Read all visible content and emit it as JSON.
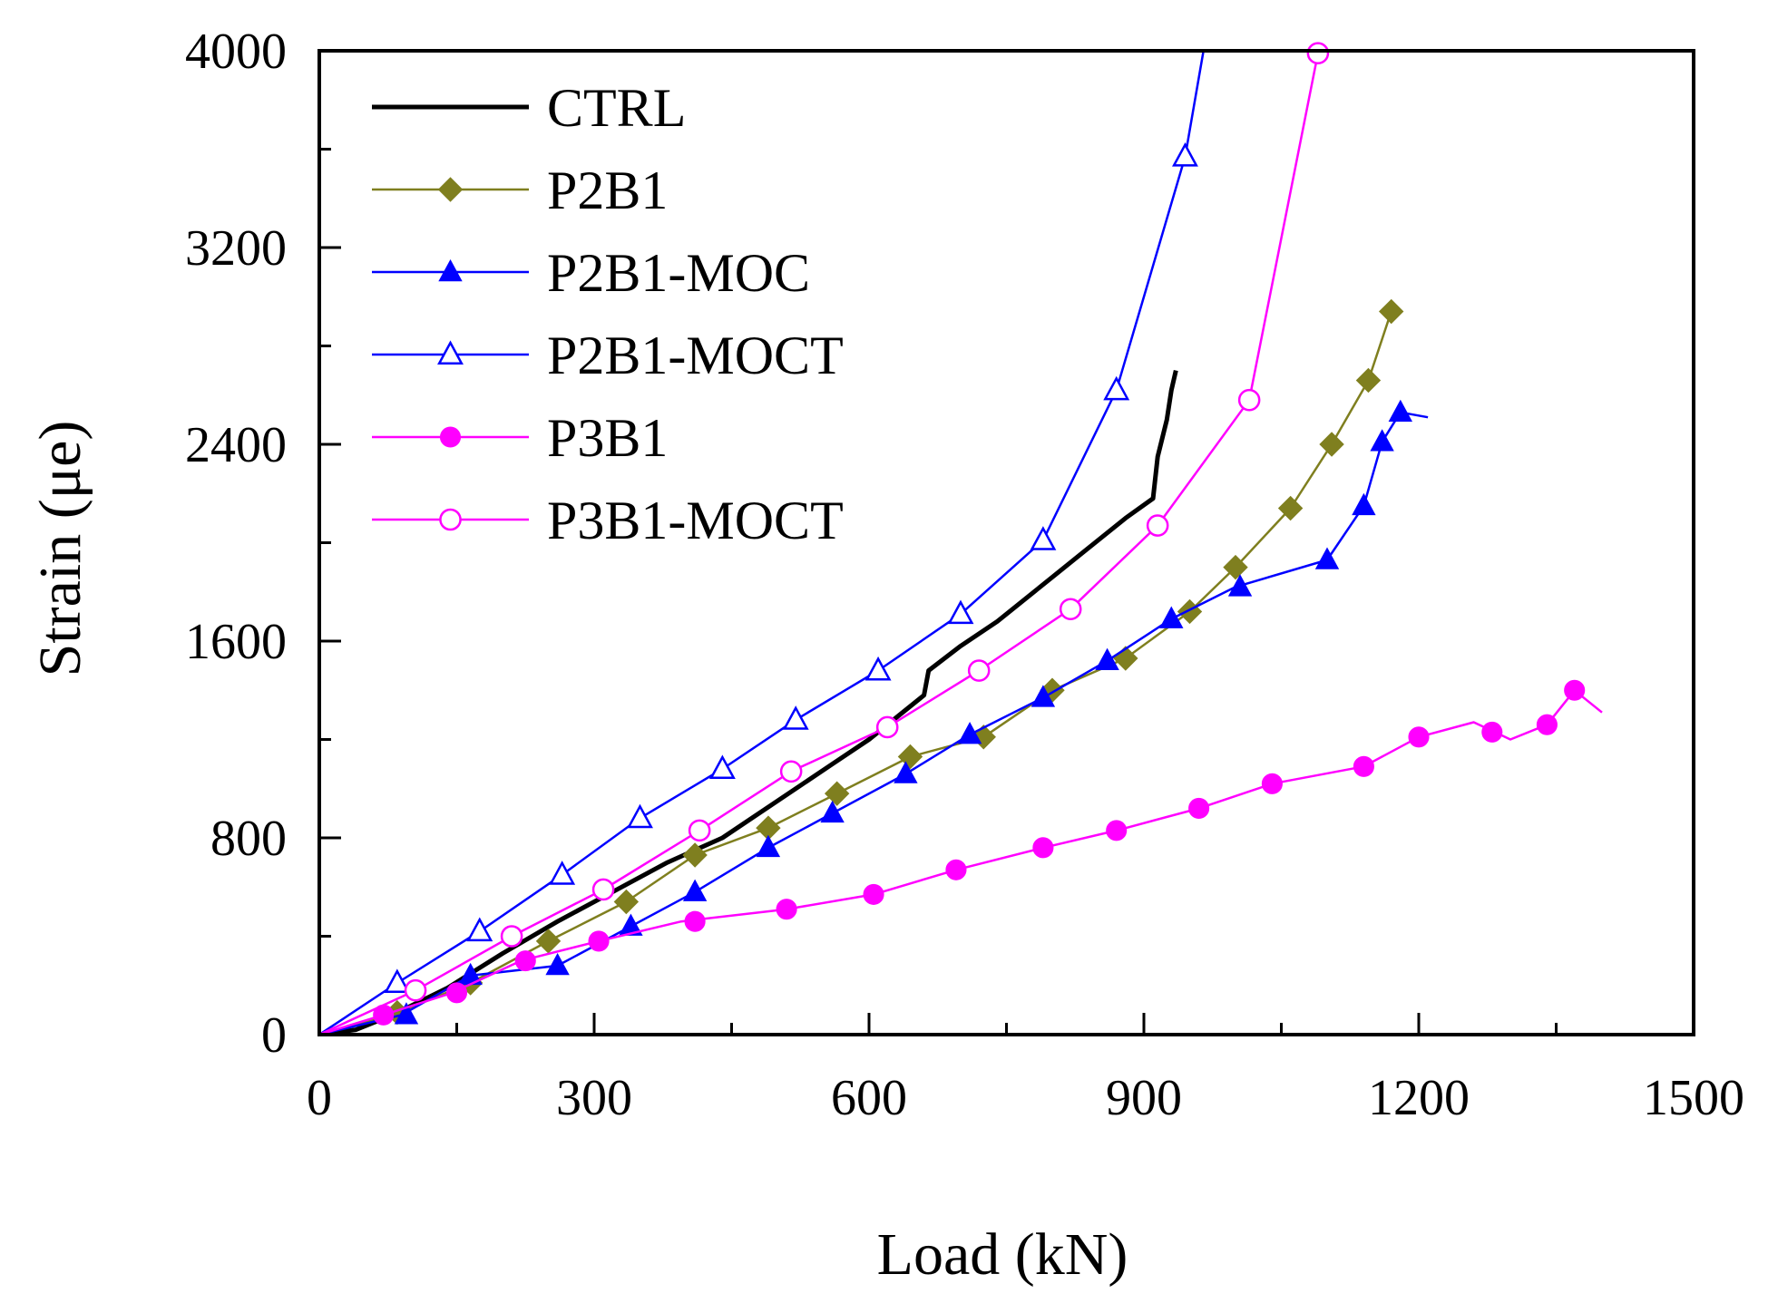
{
  "chart_data": {
    "type": "line",
    "title": "",
    "xlabel": "Load (kN)",
    "ylabel": "Strain (μe)",
    "xlim": [
      0,
      1500
    ],
    "ylim": [
      0,
      4000
    ],
    "x_ticks": [
      "0",
      "300",
      "600",
      "900",
      "1200",
      "1500"
    ],
    "y_ticks": [
      "0",
      "800",
      "1600",
      "2400",
      "3200",
      "4000"
    ],
    "x_tick_values": [
      0,
      300,
      600,
      900,
      1200,
      1500
    ],
    "y_tick_values": [
      0,
      800,
      1600,
      2400,
      3200,
      4000
    ],
    "grid": false,
    "legend_position": "top-left",
    "series": [
      {
        "name": "CTRL",
        "color": "#000000",
        "marker": "none",
        "points": [
          [
            0,
            0
          ],
          [
            40,
            20
          ],
          [
            80,
            80
          ],
          [
            140,
            190
          ],
          [
            200,
            330
          ],
          [
            260,
            460
          ],
          [
            320,
            580
          ],
          [
            380,
            700
          ],
          [
            440,
            800
          ],
          [
            500,
            950
          ],
          [
            560,
            1100
          ],
          [
            600,
            1200
          ],
          [
            640,
            1320
          ],
          [
            660,
            1380
          ],
          [
            665,
            1480
          ],
          [
            700,
            1580
          ],
          [
            740,
            1680
          ],
          [
            780,
            1800
          ],
          [
            830,
            1950
          ],
          [
            880,
            2100
          ],
          [
            910,
            2180
          ],
          [
            915,
            2350
          ],
          [
            925,
            2500
          ],
          [
            930,
            2620
          ],
          [
            935,
            2700
          ]
        ]
      },
      {
        "name": "P2B1",
        "color": "#7f7f1f",
        "marker": "diamond",
        "points": [
          [
            0,
            0
          ],
          [
            80,
            80
          ],
          [
            165,
            210
          ],
          [
            250,
            380
          ],
          [
            335,
            540
          ],
          [
            410,
            730
          ],
          [
            490,
            840
          ],
          [
            565,
            980
          ],
          [
            645,
            1130
          ],
          [
            725,
            1210
          ],
          [
            800,
            1400
          ],
          [
            880,
            1530
          ],
          [
            950,
            1720
          ],
          [
            1000,
            1900
          ],
          [
            1060,
            2140
          ],
          [
            1105,
            2400
          ],
          [
            1145,
            2660
          ],
          [
            1170,
            2940
          ]
        ],
        "marker_points": [
          [
            85,
            90
          ],
          [
            165,
            210
          ],
          [
            250,
            380
          ],
          [
            335,
            540
          ],
          [
            410,
            730
          ],
          [
            490,
            840
          ],
          [
            565,
            980
          ],
          [
            645,
            1130
          ],
          [
            725,
            1210
          ],
          [
            800,
            1400
          ],
          [
            880,
            1530
          ],
          [
            950,
            1720
          ],
          [
            1000,
            1900
          ],
          [
            1060,
            2140
          ],
          [
            1105,
            2400
          ],
          [
            1145,
            2660
          ],
          [
            1170,
            2940
          ]
        ]
      },
      {
        "name": "P2B1-MOC",
        "color": "#0000ff",
        "marker": "triangle-filled",
        "points": [
          [
            0,
            0
          ],
          [
            90,
            80
          ],
          [
            165,
            240
          ],
          [
            260,
            280
          ],
          [
            340,
            440
          ],
          [
            410,
            580
          ],
          [
            490,
            760
          ],
          [
            560,
            900
          ],
          [
            640,
            1060
          ],
          [
            710,
            1220
          ],
          [
            790,
            1370
          ],
          [
            860,
            1520
          ],
          [
            930,
            1690
          ],
          [
            1000,
            1820
          ],
          [
            1100,
            1930
          ],
          [
            1140,
            2150
          ],
          [
            1160,
            2410
          ],
          [
            1180,
            2530
          ],
          [
            1210,
            2510
          ]
        ],
        "marker_points": [
          [
            95,
            80
          ],
          [
            165,
            240
          ],
          [
            260,
            280
          ],
          [
            340,
            440
          ],
          [
            410,
            580
          ],
          [
            490,
            760
          ],
          [
            560,
            900
          ],
          [
            640,
            1060
          ],
          [
            710,
            1220
          ],
          [
            790,
            1370
          ],
          [
            860,
            1520
          ],
          [
            930,
            1690
          ],
          [
            1005,
            1820
          ],
          [
            1100,
            1930
          ],
          [
            1140,
            2150
          ],
          [
            1160,
            2410
          ],
          [
            1180,
            2530
          ]
        ]
      },
      {
        "name": "P2B1-MOCT",
        "color": "#0000ff",
        "marker": "triangle-open",
        "points": [
          [
            0,
            0
          ],
          [
            85,
            210
          ],
          [
            175,
            420
          ],
          [
            265,
            650
          ],
          [
            350,
            880
          ],
          [
            440,
            1080
          ],
          [
            520,
            1280
          ],
          [
            610,
            1480
          ],
          [
            700,
            1710
          ],
          [
            790,
            2010
          ],
          [
            870,
            2620
          ],
          [
            945,
            3570
          ],
          [
            965,
            4000
          ]
        ],
        "marker_points": [
          [
            85,
            210
          ],
          [
            175,
            420
          ],
          [
            265,
            650
          ],
          [
            350,
            880
          ],
          [
            440,
            1080
          ],
          [
            520,
            1280
          ],
          [
            610,
            1480
          ],
          [
            700,
            1710
          ],
          [
            790,
            2010
          ],
          [
            870,
            2620
          ],
          [
            945,
            3570
          ]
        ]
      },
      {
        "name": "P3B1",
        "color": "#ff00ff",
        "marker": "circle-filled",
        "points": [
          [
            0,
            0
          ],
          [
            70,
            80
          ],
          [
            145,
            170
          ],
          [
            220,
            300
          ],
          [
            305,
            380
          ],
          [
            395,
            460
          ],
          [
            510,
            510
          ],
          [
            605,
            570
          ],
          [
            695,
            670
          ],
          [
            790,
            760
          ],
          [
            870,
            830
          ],
          [
            960,
            920
          ],
          [
            1040,
            1020
          ],
          [
            1140,
            1090
          ],
          [
            1200,
            1210
          ],
          [
            1260,
            1270
          ],
          [
            1300,
            1200
          ],
          [
            1340,
            1260
          ],
          [
            1370,
            1400
          ],
          [
            1400,
            1310
          ]
        ],
        "marker_points": [
          [
            70,
            80
          ],
          [
            150,
            170
          ],
          [
            225,
            300
          ],
          [
            305,
            380
          ],
          [
            410,
            460
          ],
          [
            510,
            510
          ],
          [
            605,
            570
          ],
          [
            695,
            670
          ],
          [
            790,
            760
          ],
          [
            870,
            830
          ],
          [
            960,
            920
          ],
          [
            1040,
            1020
          ],
          [
            1140,
            1090
          ],
          [
            1200,
            1210
          ],
          [
            1280,
            1230
          ],
          [
            1340,
            1260
          ],
          [
            1370,
            1400
          ]
        ]
      },
      {
        "name": "P3B1-MOCT",
        "color": "#ff00ff",
        "marker": "circle-open",
        "points": [
          [
            0,
            0
          ],
          [
            105,
            180
          ],
          [
            210,
            400
          ],
          [
            310,
            590
          ],
          [
            415,
            830
          ],
          [
            515,
            1070
          ],
          [
            620,
            1250
          ],
          [
            720,
            1480
          ],
          [
            820,
            1730
          ],
          [
            915,
            2070
          ],
          [
            1015,
            2580
          ],
          [
            1090,
            3990
          ]
        ],
        "marker_points": [
          [
            105,
            180
          ],
          [
            210,
            400
          ],
          [
            310,
            590
          ],
          [
            415,
            830
          ],
          [
            515,
            1070
          ],
          [
            620,
            1250
          ],
          [
            720,
            1480
          ],
          [
            820,
            1730
          ],
          [
            915,
            2070
          ],
          [
            1015,
            2580
          ],
          [
            1090,
            3990
          ]
        ]
      }
    ]
  }
}
